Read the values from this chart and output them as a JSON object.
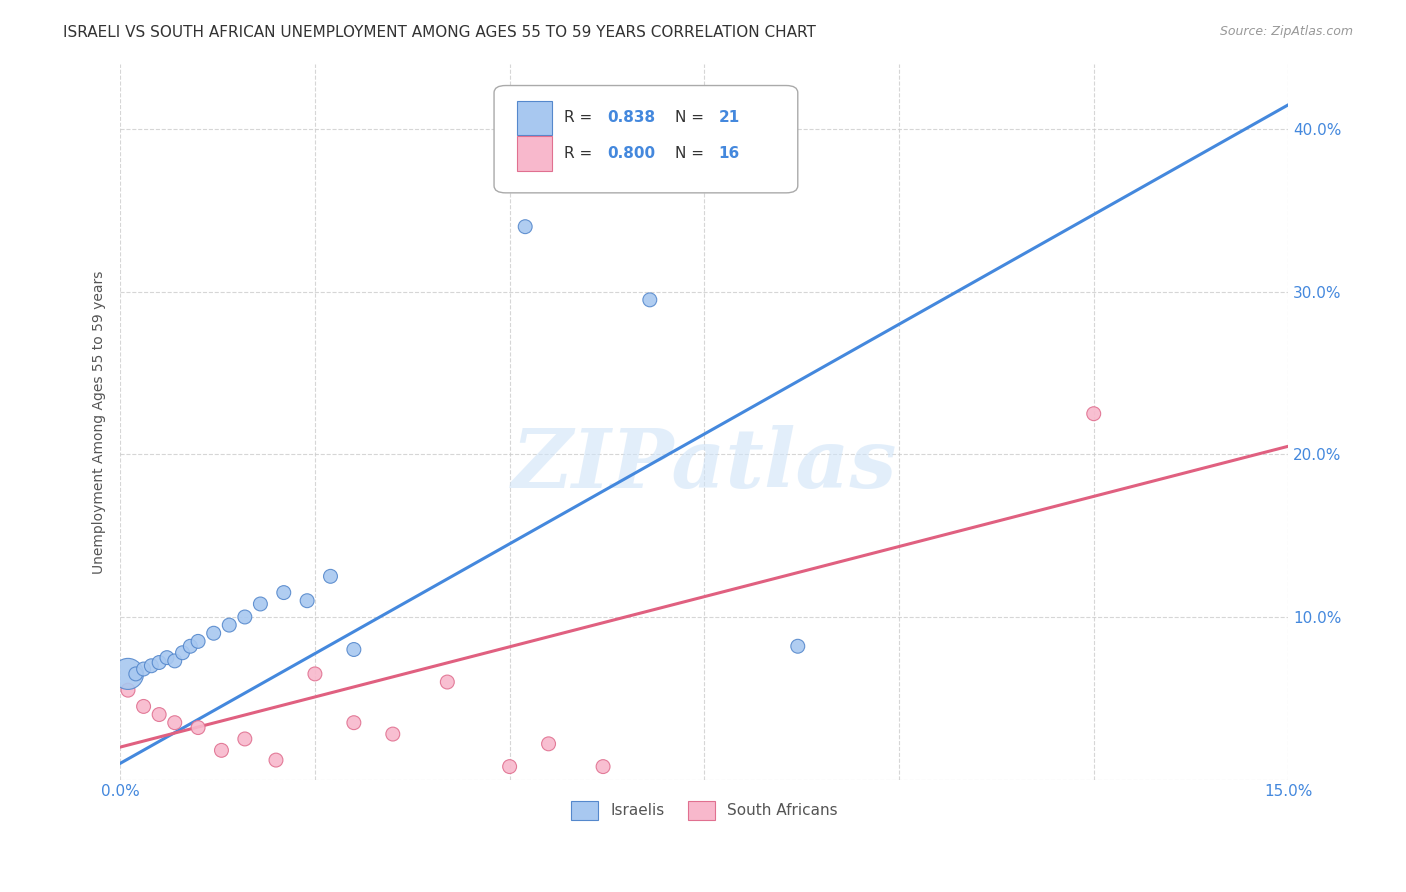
{
  "title": "ISRAELI VS SOUTH AFRICAN UNEMPLOYMENT AMONG AGES 55 TO 59 YEARS CORRELATION CHART",
  "source": "Source: ZipAtlas.com",
  "ylabel": "Unemployment Among Ages 55 to 59 years",
  "xlim": [
    0.0,
    0.15
  ],
  "ylim": [
    0.0,
    0.44
  ],
  "xticks": [
    0.0,
    0.025,
    0.05,
    0.075,
    0.1,
    0.125,
    0.15
  ],
  "yticks": [
    0.0,
    0.1,
    0.2,
    0.3,
    0.4
  ],
  "ytick_labels": [
    "",
    "10.0%",
    "20.0%",
    "30.0%",
    "40.0%"
  ],
  "xtick_labels": [
    "0.0%",
    "",
    "",
    "",
    "",
    "",
    "15.0%"
  ],
  "israeli_scatter": {
    "x": [
      0.001,
      0.002,
      0.003,
      0.004,
      0.005,
      0.006,
      0.007,
      0.008,
      0.009,
      0.01,
      0.012,
      0.014,
      0.016,
      0.018,
      0.021,
      0.024,
      0.027,
      0.03,
      0.052,
      0.068,
      0.087
    ],
    "y": [
      0.065,
      0.065,
      0.068,
      0.07,
      0.072,
      0.075,
      0.073,
      0.078,
      0.082,
      0.085,
      0.09,
      0.095,
      0.1,
      0.108,
      0.115,
      0.11,
      0.125,
      0.08,
      0.34,
      0.295,
      0.082
    ],
    "sizes": [
      500,
      100,
      100,
      100,
      100,
      100,
      100,
      100,
      100,
      100,
      100,
      100,
      100,
      100,
      100,
      100,
      100,
      100,
      100,
      100,
      100
    ],
    "color": "#a8c8f0",
    "edgecolor": "#5588cc",
    "R": 0.838,
    "N": 21
  },
  "sa_scatter": {
    "x": [
      0.001,
      0.003,
      0.005,
      0.007,
      0.01,
      0.013,
      0.016,
      0.02,
      0.025,
      0.03,
      0.035,
      0.042,
      0.05,
      0.055,
      0.062,
      0.125
    ],
    "y": [
      0.055,
      0.045,
      0.04,
      0.035,
      0.032,
      0.018,
      0.025,
      0.012,
      0.065,
      0.035,
      0.028,
      0.06,
      0.008,
      0.022,
      0.008,
      0.225
    ],
    "sizes": [
      100,
      100,
      100,
      100,
      100,
      100,
      100,
      100,
      100,
      100,
      100,
      100,
      100,
      100,
      100,
      100
    ],
    "color": "#f8b8cc",
    "edgecolor": "#e07090",
    "R": 0.8,
    "N": 16
  },
  "blue_line_x": [
    0.0,
    0.15
  ],
  "blue_line_y": [
    0.01,
    0.415
  ],
  "pink_line_x": [
    0.0,
    0.15
  ],
  "pink_line_y": [
    0.02,
    0.205
  ],
  "blue_line_color": "#4488dd",
  "pink_line_color": "#e06080",
  "line_width": 2.2,
  "legend_labels": [
    "Israelis",
    "South Africans"
  ],
  "legend_colors": [
    "#a8c8f0",
    "#f8b8cc"
  ],
  "legend_edge_colors": [
    "#5588cc",
    "#e07090"
  ],
  "watermark": "ZIPatlas",
  "background_color": "#ffffff",
  "grid_color": "#cccccc",
  "title_fontsize": 11,
  "axis_label_fontsize": 10,
  "tick_fontsize": 11,
  "source_fontsize": 9
}
